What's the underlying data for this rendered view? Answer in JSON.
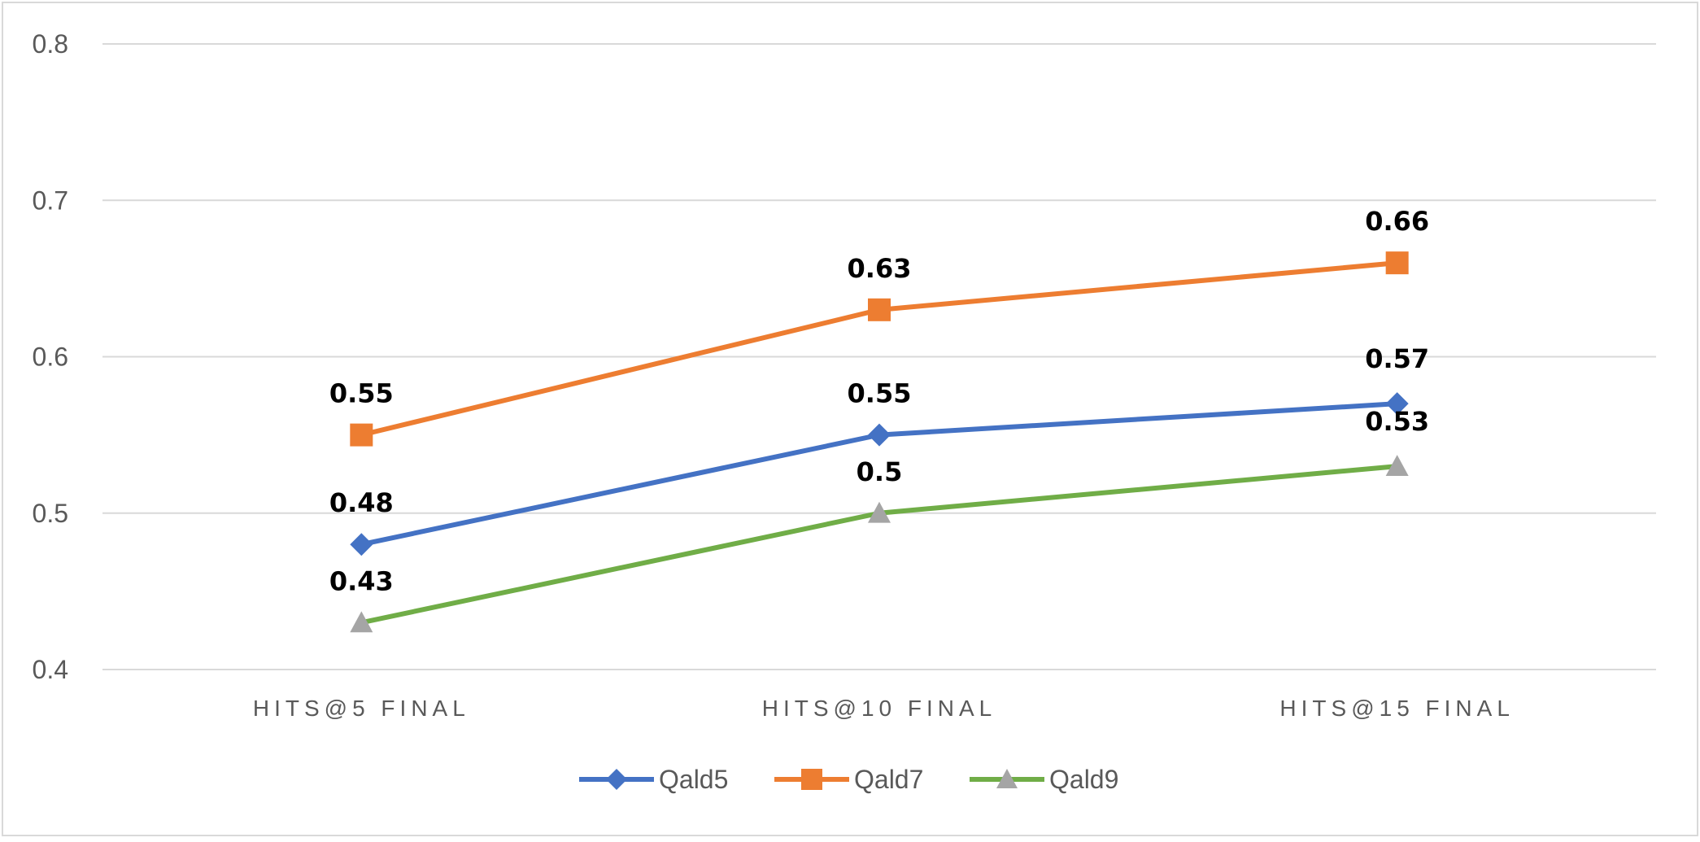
{
  "chart_data": {
    "type": "line",
    "title": "",
    "xlabel": "",
    "ylabel": "",
    "categories": [
      "HITS@5 FINAL",
      "HITS@10 FINAL",
      "HITS@15 FINAL"
    ],
    "ylim": [
      0.4,
      0.8
    ],
    "yticks": [
      "0.4",
      "0.5",
      "0.6",
      "0.7",
      "0.8"
    ],
    "grid": "horizontal",
    "legend": "bottom",
    "series": [
      {
        "name": "Qald5",
        "values": [
          0.48,
          0.55,
          0.57
        ],
        "labels": [
          "0.48",
          "0.55",
          "0.57"
        ],
        "color": "#4472C4",
        "marker": "diamond"
      },
      {
        "name": "Qald7",
        "values": [
          0.55,
          0.63,
          0.66
        ],
        "labels": [
          "0.55",
          "0.63",
          "0.66"
        ],
        "color": "#ED7D31",
        "marker": "square"
      },
      {
        "name": "Qald9",
        "values": [
          0.43,
          0.5,
          0.53
        ],
        "labels": [
          "0.43",
          "0.5",
          "0.53"
        ],
        "color": "#70AD47",
        "marker": "triangle",
        "marker_color": "#A5A5A5"
      }
    ]
  }
}
